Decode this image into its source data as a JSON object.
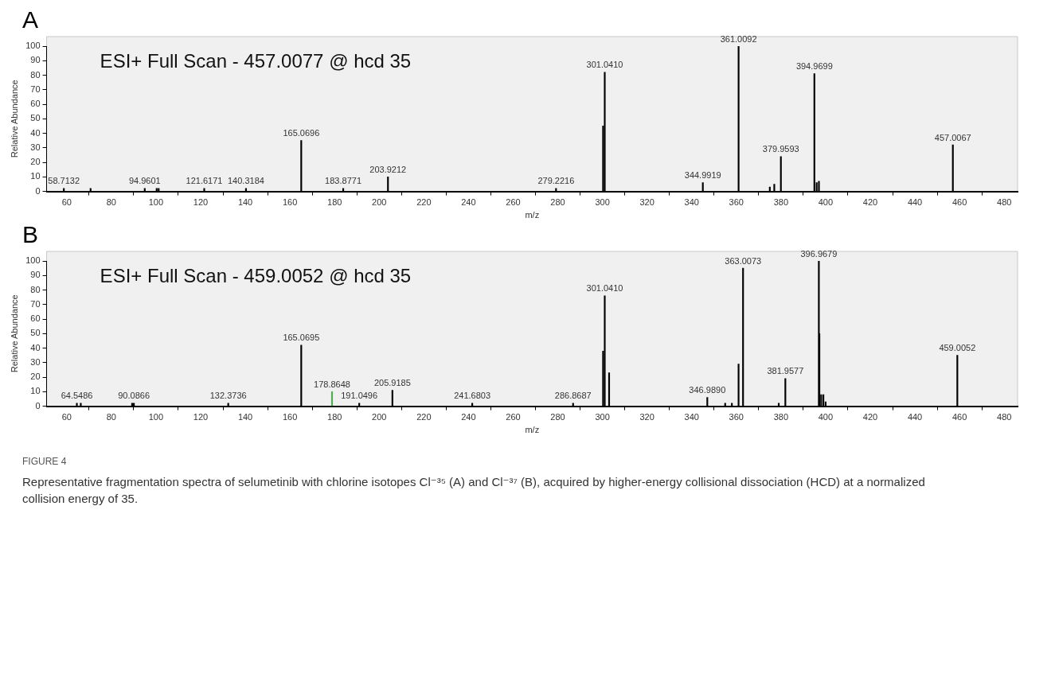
{
  "chart_data": [
    {
      "type": "bar",
      "title": "A",
      "subtitle": "ESI+ Full Scan - 457.0077 @ hcd 35",
      "xlabel": "m/z",
      "ylabel": "Relative Abundance",
      "color": "#000000",
      "x": [
        58.7132,
        70.7,
        94.9601,
        100.3,
        101.2,
        121.6171,
        140.3184,
        165.0696,
        183.8771,
        203.9212,
        279.2216,
        300.3,
        301.041,
        344.9919,
        361.0092,
        375.0,
        377.0,
        379.9593,
        394.9699,
        396.0,
        397.0,
        457.0067
      ],
      "values": [
        2,
        2,
        2,
        2,
        2,
        2,
        2,
        35,
        2,
        10,
        2,
        45,
        82,
        6,
        100,
        3,
        5,
        24,
        81,
        6,
        7,
        32
      ],
      "annotations": [
        {
          "text": "58.7132",
          "x": 58.7132,
          "y": 2
        },
        {
          "text": "94.9601",
          "x": 94.9601,
          "y": 2
        },
        {
          "text": "121.6171",
          "x": 121.6171,
          "y": 2
        },
        {
          "text": "140.3184",
          "x": 140.3184,
          "y": 2
        },
        {
          "text": "165.0696",
          "x": 165.0696,
          "y": 35
        },
        {
          "text": "183.8771",
          "x": 183.8771,
          "y": 2
        },
        {
          "text": "203.9212",
          "x": 203.9212,
          "y": 10
        },
        {
          "text": "279.2216",
          "x": 279.2216,
          "y": 2
        },
        {
          "text": "301.0410",
          "x": 301.041,
          "y": 82
        },
        {
          "text": "344.9919",
          "x": 344.9919,
          "y": 6
        },
        {
          "text": "361.0092",
          "x": 361.0092,
          "y": 100
        },
        {
          "text": "379.9593",
          "x": 379.9593,
          "y": 24
        },
        {
          "text": "394.9699",
          "x": 394.9699,
          "y": 81
        },
        {
          "text": "457.0067",
          "x": 457.0067,
          "y": 32
        }
      ],
      "xlim": [
        51,
        486
      ],
      "xticks": [
        60,
        80,
        100,
        120,
        140,
        160,
        180,
        200,
        220,
        240,
        260,
        280,
        300,
        320,
        340,
        360,
        380,
        400,
        420,
        440,
        460,
        480
      ],
      "ylim": [
        0,
        100
      ],
      "yticks": [
        0,
        10,
        20,
        30,
        40,
        50,
        60,
        70,
        80,
        90,
        100
      ]
    },
    {
      "type": "bar",
      "title": "B",
      "subtitle": "ESI+ Full Scan - 459.0052 @ hcd 35",
      "xlabel": "m/z",
      "ylabel": "Relative Abundance",
      "x": [
        64.5486,
        66.3,
        89.3,
        90.0866,
        132.3736,
        165.0695,
        178.8648,
        191.0496,
        205.9185,
        241.6803,
        286.8687,
        300.3,
        301.041,
        303.0,
        346.989,
        355.0,
        358.0,
        361.0,
        363.0073,
        379.0,
        381.9577,
        396.9679,
        397.2,
        398.0,
        399.0,
        400.0,
        459.0052
      ],
      "values": [
        2,
        2,
        2,
        2,
        2,
        42,
        10,
        2,
        11,
        2,
        2,
        38,
        76,
        23,
        6,
        2,
        2,
        29,
        95,
        2,
        19,
        100,
        50,
        8,
        8,
        3,
        35
      ],
      "colors": [
        "#000000",
        "#000000",
        "#000000",
        "#000000",
        "#000000",
        "#000000",
        "#4caf50",
        "#000000",
        "#000000",
        "#000000",
        "#000000",
        "#000000",
        "#000000",
        "#000000",
        "#000000",
        "#000000",
        "#000000",
        "#000000",
        "#000000",
        "#000000",
        "#000000",
        "#000000",
        "#000000",
        "#000000",
        "#000000",
        "#000000",
        "#000000"
      ],
      "xlim": [
        51,
        486
      ],
      "xticks": [
        60,
        80,
        100,
        120,
        140,
        160,
        180,
        200,
        220,
        240,
        260,
        280,
        300,
        320,
        340,
        360,
        380,
        400,
        420,
        440,
        460,
        480
      ],
      "ylim": [
        0,
        100
      ],
      "yticks": [
        0,
        10,
        20,
        30,
        40,
        50,
        60,
        70,
        80,
        90,
        100
      ],
      "annotations": [
        {
          "text": "64.5486",
          "x": 64.5486,
          "y": 2
        },
        {
          "text": "90.0866",
          "x": 90.0866,
          "y": 2
        },
        {
          "text": "132.3736",
          "x": 132.3736,
          "y": 2
        },
        {
          "text": "165.0695",
          "x": 165.0695,
          "y": 42
        },
        {
          "text": "178.8648",
          "x": 178.8648,
          "y": 10
        },
        {
          "text": "191.0496",
          "x": 191.0496,
          "y": 2
        },
        {
          "text": "205.9185",
          "x": 205.9185,
          "y": 11
        },
        {
          "text": "241.6803",
          "x": 241.6803,
          "y": 2
        },
        {
          "text": "286.8687",
          "x": 286.8687,
          "y": 2
        },
        {
          "text": "301.0410",
          "x": 301.041,
          "y": 76
        },
        {
          "text": "346.9890",
          "x": 346.989,
          "y": 6
        },
        {
          "text": "363.0073",
          "x": 363.0073,
          "y": 95
        },
        {
          "text": "381.9577",
          "x": 381.9577,
          "y": 19
        },
        {
          "text": "396.9679",
          "x": 396.9679,
          "y": 100
        },
        {
          "text": "459.0052",
          "x": 459.0052,
          "y": 35
        },
        "FIGURE 4",
        "Representative fragmentation spectra of selumetinib with chlorine isotopes Cl⁻³⁵ (A) and Cl⁻³⁷ (B), acquired by higher-energy collisional dissociation (HCD) at a normalized collision energy of 35."
      ]
    }
  ]
}
